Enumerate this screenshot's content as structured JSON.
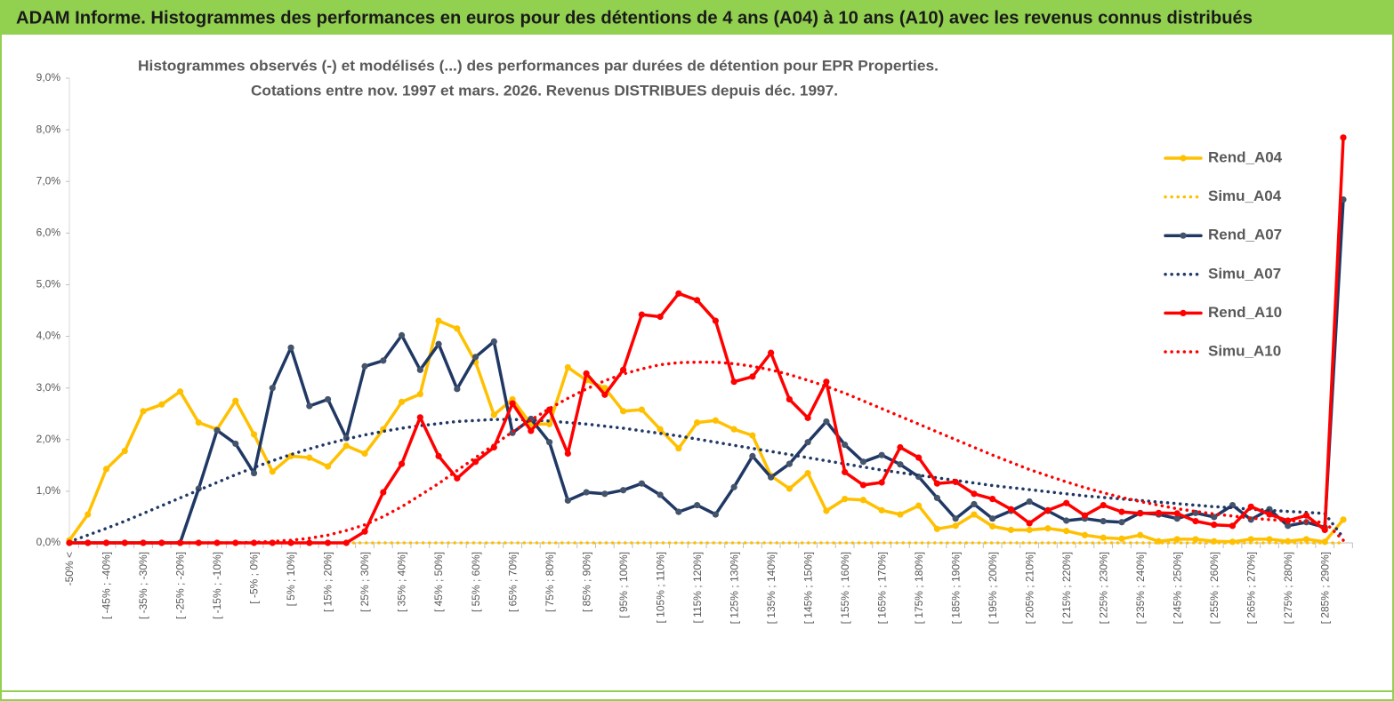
{
  "chart_data": {
    "type": "line",
    "title": "ADAM Informe. Histogrammes des performances en euros pour des détentions de 4 ans (A04) à 10 ans (A10) avec les revenus connus distribués",
    "subtitle": [
      "Histogrammes observés (-) et modélisés (...) des performances par durées de détention pour EPR Properties.",
      "Cotations entre nov. 1997 et mars. 2026. Revenus DISTRIBUES depuis déc. 1997."
    ],
    "categories": [
      "-50% <",
      null,
      "[ -45% ; -40%]",
      null,
      "[ -35% ; -30%]",
      null,
      "[ -25% ; -20%]",
      null,
      "[ -15% ; -10%]",
      null,
      "[ -5% ; 0%]",
      null,
      "[ 5% ; 10%]",
      null,
      "[ 15% ; 20%]",
      null,
      "[ 25% ; 30%]",
      null,
      "[ 35% ; 40%]",
      null,
      "[ 45% ; 50%]",
      null,
      "[ 55% ; 60%]",
      null,
      "[ 65% ; 70%]",
      null,
      "[ 75% ; 80%]",
      null,
      "[ 85% ; 90%]",
      null,
      "[ 95% ; 100%]",
      null,
      "[ 105% ; 110%]",
      null,
      "[ 115% ; 120%]",
      null,
      "[ 125% ; 130%]",
      null,
      "[ 135% ; 140%]",
      null,
      "[ 145% ; 150%]",
      null,
      "[ 155% ; 160%]",
      null,
      "[ 165% ; 170%]",
      null,
      "[ 175% ; 180%]",
      null,
      "[ 185% ; 190%]",
      null,
      "[ 195% ; 200%]",
      null,
      "[ 205% ; 210%]",
      null,
      "[ 215% ; 220%]",
      null,
      "[ 225% ; 230%]",
      null,
      "[ 235% ; 240%]",
      null,
      "[ 245% ; 250%]",
      null,
      "[ 255% ; 260%]",
      null,
      "[ 265% ; 270%]",
      null,
      "[ 275% ; 280%]",
      null,
      "[ 285% ; 290%]",
      null
    ],
    "ylim": [
      0,
      9
    ],
    "yticks": [
      {
        "value": 0,
        "label": "0,0%"
      },
      {
        "value": 1,
        "label": "1,0%"
      },
      {
        "value": 2,
        "label": "2,0%"
      },
      {
        "value": 3,
        "label": "3,0%"
      },
      {
        "value": 4,
        "label": "4,0%"
      },
      {
        "value": 5,
        "label": "5,0%"
      },
      {
        "value": 6,
        "label": "6,0%"
      },
      {
        "value": 7,
        "label": "7,0%"
      },
      {
        "value": 8,
        "label": "8,0%"
      },
      {
        "value": 9,
        "label": "9,0%"
      }
    ],
    "grid": false,
    "legend": "right",
    "series": [
      {
        "name": "Rend_A04",
        "color": "#ffc000",
        "style": "solid",
        "values": [
          0.05,
          0.55,
          1.43,
          1.78,
          2.55,
          2.68,
          2.93,
          2.33,
          2.2,
          2.75,
          2.1,
          1.38,
          1.68,
          1.65,
          1.48,
          1.88,
          1.73,
          2.2,
          2.73,
          2.88,
          4.3,
          4.15,
          3.5,
          2.48,
          2.78,
          2.3,
          2.3,
          3.4,
          3.15,
          3.0,
          2.55,
          2.58,
          2.2,
          1.83,
          2.33,
          2.37,
          2.2,
          2.08,
          1.3,
          1.05,
          1.35,
          0.62,
          0.85,
          0.83,
          0.63,
          0.55,
          0.72,
          0.27,
          0.33,
          0.55,
          0.32,
          0.25,
          0.25,
          0.28,
          0.23,
          0.15,
          0.1,
          0.08,
          0.15,
          0.03,
          0.07,
          0.07,
          0.03,
          0.02,
          0.07,
          0.07,
          0.03,
          0.07,
          0.02,
          0.45
        ]
      },
      {
        "name": "Simu_A04",
        "color": "#ffc000",
        "style": "dotted",
        "values": [
          0,
          0,
          0,
          0,
          0,
          0,
          0,
          0,
          0,
          0,
          0,
          0,
          0,
          0,
          0,
          0,
          0,
          0,
          0,
          0,
          0,
          0,
          0,
          0,
          0,
          0,
          0,
          0,
          0,
          0,
          0,
          0,
          0,
          0,
          0,
          0,
          0,
          0,
          0,
          0,
          0,
          0,
          0,
          0,
          0,
          0,
          0,
          0,
          0,
          0,
          0,
          0,
          0,
          0,
          0,
          0,
          0,
          0,
          0,
          0,
          0,
          0,
          0,
          0,
          0,
          0,
          0,
          0,
          0,
          0
        ]
      },
      {
        "name": "Rend_A07",
        "color": "#203864",
        "style": "solid",
        "values": [
          0,
          0,
          0,
          0,
          0,
          0,
          0,
          1.05,
          2.18,
          1.92,
          1.35,
          3.0,
          3.78,
          2.65,
          2.78,
          2.03,
          3.42,
          3.53,
          4.02,
          3.35,
          3.85,
          2.98,
          3.6,
          3.9,
          2.13,
          2.4,
          1.95,
          0.82,
          0.98,
          0.95,
          1.02,
          1.15,
          0.93,
          0.6,
          0.73,
          0.55,
          1.08,
          1.68,
          1.27,
          1.53,
          1.95,
          2.35,
          1.9,
          1.57,
          1.7,
          1.52,
          1.28,
          0.87,
          0.47,
          0.75,
          0.47,
          0.62,
          0.8,
          0.62,
          0.43,
          0.47,
          0.42,
          0.4,
          0.58,
          0.55,
          0.47,
          0.58,
          0.5,
          0.73,
          0.45,
          0.65,
          0.33,
          0.4,
          0.3,
          6.65
        ]
      },
      {
        "name": "Simu_A07",
        "color": "#203864",
        "style": "dotted",
        "values": [
          0.02,
          0.15,
          0.28,
          0.42,
          0.57,
          0.72,
          0.87,
          1.02,
          1.17,
          1.32,
          1.46,
          1.59,
          1.71,
          1.82,
          1.92,
          2.01,
          2.09,
          2.16,
          2.22,
          2.27,
          2.31,
          2.35,
          2.37,
          2.39,
          2.39,
          2.38,
          2.36,
          2.33,
          2.3,
          2.26,
          2.22,
          2.17,
          2.12,
          2.07,
          2.01,
          1.95,
          1.89,
          1.83,
          1.77,
          1.71,
          1.65,
          1.59,
          1.53,
          1.47,
          1.41,
          1.36,
          1.31,
          1.26,
          1.21,
          1.16,
          1.11,
          1.07,
          1.03,
          0.99,
          0.95,
          0.91,
          0.88,
          0.85,
          0.82,
          0.79,
          0.76,
          0.73,
          0.7,
          0.68,
          0.65,
          0.63,
          0.61,
          0.59,
          0.57,
          0.1
        ]
      },
      {
        "name": "Rend_A10",
        "color": "#ff0000",
        "style": "solid",
        "values": [
          0,
          0,
          0,
          0,
          0,
          0,
          0,
          0,
          0,
          0,
          0,
          0,
          0,
          0,
          0,
          0,
          0.22,
          0.98,
          1.53,
          2.43,
          1.68,
          1.25,
          1.57,
          1.85,
          2.7,
          2.17,
          2.58,
          1.73,
          3.28,
          2.87,
          3.35,
          4.42,
          4.38,
          4.83,
          4.7,
          4.3,
          3.12,
          3.22,
          3.68,
          2.78,
          2.42,
          3.12,
          1.37,
          1.12,
          1.17,
          1.85,
          1.65,
          1.15,
          1.18,
          0.95,
          0.85,
          0.65,
          0.38,
          0.63,
          0.77,
          0.53,
          0.73,
          0.6,
          0.57,
          0.58,
          0.57,
          0.42,
          0.35,
          0.33,
          0.7,
          0.55,
          0.43,
          0.53,
          0.25,
          7.85
        ]
      },
      {
        "name": "Simu_A10",
        "color": "#ff0000",
        "style": "dotted",
        "values": [
          0,
          0,
          0,
          0,
          0,
          0,
          0,
          0,
          0,
          0,
          0.01,
          0.03,
          0.05,
          0.09,
          0.15,
          0.24,
          0.35,
          0.51,
          0.7,
          0.92,
          1.15,
          1.4,
          1.65,
          1.9,
          2.15,
          2.38,
          2.6,
          2.8,
          2.98,
          3.14,
          3.27,
          3.37,
          3.45,
          3.49,
          3.5,
          3.5,
          3.47,
          3.42,
          3.35,
          3.26,
          3.15,
          3.03,
          2.9,
          2.75,
          2.6,
          2.45,
          2.3,
          2.15,
          2.0,
          1.85,
          1.7,
          1.56,
          1.42,
          1.3,
          1.18,
          1.07,
          0.97,
          0.88,
          0.8,
          0.73,
          0.66,
          0.61,
          0.56,
          0.52,
          0.48,
          0.45,
          0.43,
          0.41,
          0.4,
          0.05
        ]
      }
    ]
  }
}
